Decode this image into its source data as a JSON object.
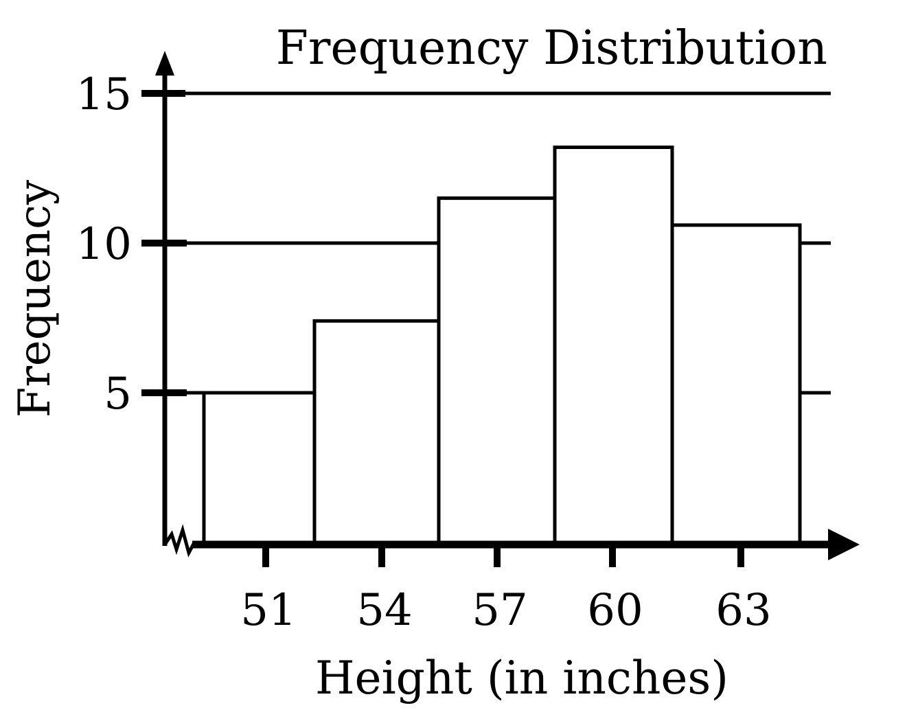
{
  "chart_data": {
    "type": "bar",
    "title": "Frequency Distribution",
    "xlabel": "Height (in inches)",
    "ylabel": "Frequency",
    "categories": [
      "51",
      "54",
      "57",
      "60",
      "63"
    ],
    "values": [
      5,
      7.4,
      11.5,
      13.2,
      10.6
    ],
    "y_ticks": [
      "5",
      "10",
      "15"
    ],
    "ylim": [
      0,
      15
    ],
    "grid": true,
    "legend": "none",
    "colors": {
      "stroke": "#000000",
      "fill": "#ffffff"
    }
  }
}
